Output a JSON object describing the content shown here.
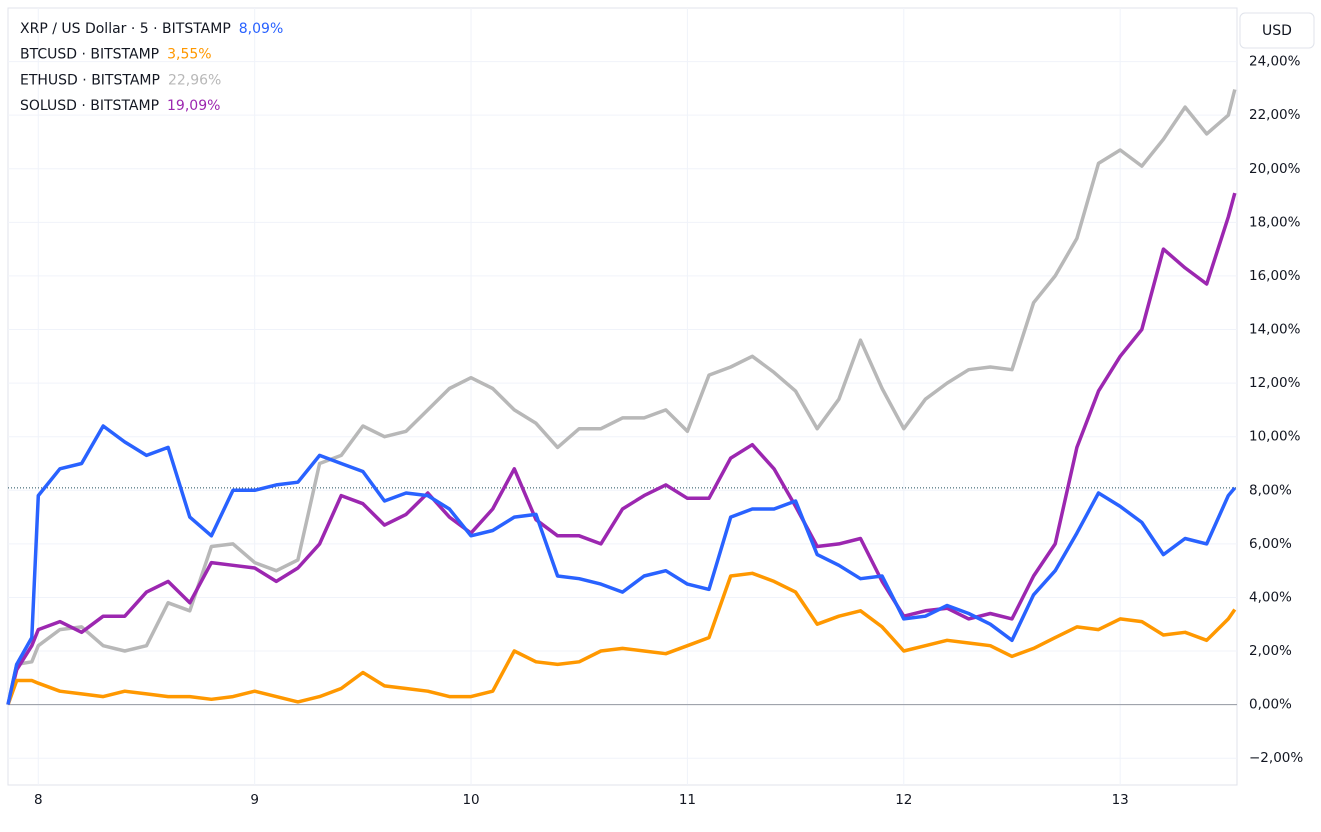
{
  "chart_data": {
    "type": "line",
    "currency_button": "USD",
    "xlim": [
      7.86,
      13.54
    ],
    "xticks": [
      8,
      9,
      10,
      11,
      12,
      13
    ],
    "ylim": [
      -3,
      26
    ],
    "yticks": [
      {
        "value": -2,
        "label": "−2,00%"
      },
      {
        "value": 0,
        "label": "0,00%"
      },
      {
        "value": 2,
        "label": "2,00%"
      },
      {
        "value": 4,
        "label": "4,00%"
      },
      {
        "value": 6,
        "label": "6,00%"
      },
      {
        "value": 8,
        "label": "8,00%"
      },
      {
        "value": 10,
        "label": "10,00%"
      },
      {
        "value": 12,
        "label": "12,00%"
      },
      {
        "value": 14,
        "label": "14,00%"
      },
      {
        "value": 16,
        "label": "16,00%"
      },
      {
        "value": 18,
        "label": "18,00%"
      },
      {
        "value": 20,
        "label": "20,00%"
      },
      {
        "value": 22,
        "label": "22,00%"
      },
      {
        "value": 24,
        "label": "24,00%"
      }
    ],
    "baseline": 0,
    "grid": true,
    "x": [
      7.86,
      7.9,
      7.97,
      8.0,
      8.1,
      8.2,
      8.3,
      8.4,
      8.5,
      8.6,
      8.7,
      8.8,
      8.9,
      9.0,
      9.1,
      9.2,
      9.3,
      9.4,
      9.5,
      9.6,
      9.7,
      9.8,
      9.9,
      10.0,
      10.1,
      10.2,
      10.3,
      10.4,
      10.5,
      10.6,
      10.7,
      10.8,
      10.9,
      11.0,
      11.1,
      11.2,
      11.3,
      11.4,
      11.5,
      11.6,
      11.7,
      11.8,
      11.9,
      12.0,
      12.1,
      12.2,
      12.3,
      12.4,
      12.5,
      12.6,
      12.7,
      12.8,
      12.9,
      13.0,
      13.1,
      13.2,
      13.3,
      13.4,
      13.5,
      13.53
    ],
    "series": [
      {
        "name": "XRP / US Dollar · 5 · BITSTAMP",
        "color": "#2962ff",
        "last": {
          "value": 8.09,
          "label": "8,09%"
        },
        "price_line": true,
        "values": [
          0,
          1.5,
          2.5,
          7.8,
          8.8,
          9.0,
          10.4,
          9.8,
          9.3,
          9.6,
          7.0,
          6.3,
          8.0,
          8.0,
          8.2,
          8.3,
          9.3,
          9.0,
          8.7,
          7.6,
          7.9,
          7.8,
          7.3,
          6.3,
          6.5,
          7.0,
          7.1,
          4.8,
          4.7,
          4.5,
          4.2,
          4.8,
          5.0,
          4.5,
          4.3,
          7.0,
          7.3,
          7.3,
          7.6,
          5.6,
          5.2,
          4.7,
          4.8,
          3.2,
          3.3,
          3.7,
          3.4,
          3.0,
          2.4,
          4.1,
          5.0,
          6.4,
          7.9,
          7.4,
          6.8,
          5.6,
          6.2,
          6.0,
          7.8,
          8.09
        ]
      },
      {
        "name": "BTCUSD · BITSTAMP",
        "color": "#ff9800",
        "last": {
          "value": 3.55,
          "label": "3,55%"
        },
        "values": [
          0,
          0.9,
          0.9,
          0.8,
          0.5,
          0.4,
          0.3,
          0.5,
          0.4,
          0.3,
          0.3,
          0.2,
          0.3,
          0.5,
          0.3,
          0.1,
          0.3,
          0.6,
          1.2,
          0.7,
          0.6,
          0.5,
          0.3,
          0.3,
          0.5,
          2.0,
          1.6,
          1.5,
          1.6,
          2.0,
          2.1,
          2.0,
          1.9,
          2.2,
          2.5,
          4.8,
          4.9,
          4.6,
          4.2,
          3.0,
          3.3,
          3.5,
          2.9,
          2.0,
          2.2,
          2.4,
          2.3,
          2.2,
          1.8,
          2.1,
          2.5,
          2.9,
          2.8,
          3.2,
          3.1,
          2.6,
          2.7,
          2.4,
          3.2,
          3.55
        ]
      },
      {
        "name": "ETHUSD · BITSTAMP",
        "color": "#b8b8b8",
        "last": {
          "value": 22.96,
          "label": "22,96%"
        },
        "values": [
          0,
          1.5,
          1.6,
          2.2,
          2.8,
          2.9,
          2.2,
          2.0,
          2.2,
          3.8,
          3.5,
          5.9,
          6.0,
          5.3,
          5.0,
          5.4,
          9.0,
          9.3,
          10.4,
          10.0,
          10.2,
          11.0,
          11.8,
          12.2,
          11.8,
          11.0,
          10.5,
          9.6,
          10.3,
          10.3,
          10.7,
          10.7,
          11.0,
          10.2,
          12.3,
          12.6,
          13.0,
          12.4,
          11.7,
          10.3,
          11.4,
          13.6,
          11.8,
          10.3,
          11.4,
          12.0,
          12.5,
          12.6,
          12.5,
          15.0,
          16.0,
          17.4,
          20.2,
          20.7,
          20.1,
          21.1,
          22.3,
          21.3,
          22.0,
          22.96
        ]
      },
      {
        "name": "SOLUSD · BITSTAMP",
        "color": "#9c27b0",
        "last": {
          "value": 19.09,
          "label": "19,09%"
        },
        "values": [
          0,
          1.3,
          2.2,
          2.8,
          3.1,
          2.7,
          3.3,
          3.3,
          4.2,
          4.6,
          3.8,
          5.3,
          5.2,
          5.1,
          4.6,
          5.1,
          6.0,
          7.8,
          7.5,
          6.7,
          7.1,
          7.9,
          7.0,
          6.4,
          7.3,
          8.8,
          6.9,
          6.3,
          6.3,
          6.0,
          7.3,
          7.8,
          8.2,
          7.7,
          7.7,
          9.2,
          9.7,
          8.8,
          7.4,
          5.9,
          6.0,
          6.2,
          4.6,
          3.3,
          3.5,
          3.6,
          3.2,
          3.4,
          3.2,
          4.8,
          6.0,
          9.6,
          11.7,
          13.0,
          14.0,
          17.0,
          16.3,
          15.7,
          18.2,
          19.09
        ]
      }
    ]
  }
}
